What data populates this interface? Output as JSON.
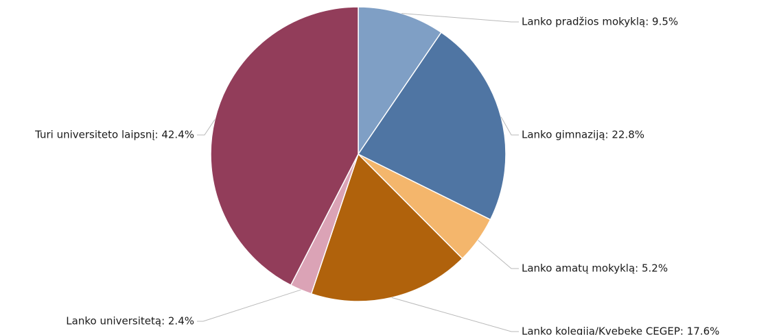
{
  "chart_data": {
    "type": "pie",
    "start_angle_deg": 0,
    "direction": "clockwise",
    "legend": "none",
    "slices": [
      {
        "label": "Lanko pradžios mokyklą: 9.5%",
        "value": 9.5,
        "color": "#7f9fc5"
      },
      {
        "label": "Lanko gimnaziją: 22.8%",
        "value": 22.8,
        "color": "#4f75a3"
      },
      {
        "label": "Lanko amatų mokyklą: 5.2%",
        "value": 5.2,
        "color": "#f4b66c"
      },
      {
        "label": "Lanko kolegiją/Kvebeke CEGEP: 17.6%",
        "value": 17.6,
        "color": "#b0620c"
      },
      {
        "label": "Lanko universitetą: 2.4%",
        "value": 2.4,
        "color": "#dba3b6"
      },
      {
        "label": "Turi universiteto laipsnį: 42.4%",
        "value": 42.4,
        "color": "#923d5a"
      }
    ]
  }
}
